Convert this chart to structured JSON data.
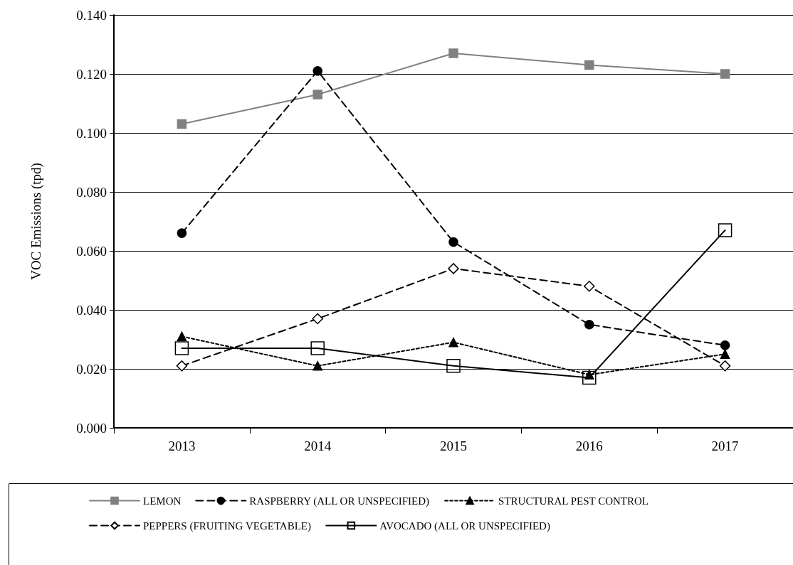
{
  "chart_data": {
    "type": "line",
    "ylabel": "VOC Emissions (tpd)",
    "categories": [
      "2013",
      "2014",
      "2015",
      "2016",
      "2017"
    ],
    "ylim": [
      0,
      0.14
    ],
    "yticks": [
      {
        "value": 0,
        "label": "0.000"
      },
      {
        "value": 0.02,
        "label": "0.020"
      },
      {
        "value": 0.04,
        "label": "0.040"
      },
      {
        "value": 0.06,
        "label": "0.060"
      },
      {
        "value": 0.08,
        "label": "0.080"
      },
      {
        "value": 0.1,
        "label": "0.100"
      },
      {
        "value": 0.12,
        "label": "0.120"
      },
      {
        "value": 0.14,
        "label": "0.140"
      }
    ],
    "grid": "y",
    "legend": "bottom",
    "series": [
      {
        "name": "LEMON",
        "color": "#808080",
        "marker": "square",
        "line_style": "solid",
        "values": [
          0.103,
          0.113,
          0.127,
          0.123,
          0.12
        ]
      },
      {
        "name": "RASPBERRY (ALL OR UNSPECIFIED)",
        "color": "#000000",
        "marker": "circle",
        "line_style": "dashed",
        "values": [
          0.066,
          0.121,
          0.063,
          0.035,
          0.028
        ]
      },
      {
        "name": "STRUCTURAL PEST CONTROL",
        "color": "#000000",
        "marker": "triangle",
        "line_style": "dotted",
        "values": [
          0.031,
          0.021,
          0.029,
          0.018,
          0.025
        ]
      },
      {
        "name": "PEPPERS (FRUITING VEGETABLE)",
        "color": "#000000",
        "marker": "diamond",
        "line_style": "dashed",
        "values": [
          0.021,
          0.037,
          0.054,
          0.048,
          0.021
        ]
      },
      {
        "name": "AVOCADO (ALL OR UNSPECIFIED)",
        "color": "#000000",
        "marker": "square",
        "line_style": "solid",
        "values": [
          0.027,
          0.027,
          0.021,
          0.017,
          0.067
        ]
      }
    ]
  }
}
